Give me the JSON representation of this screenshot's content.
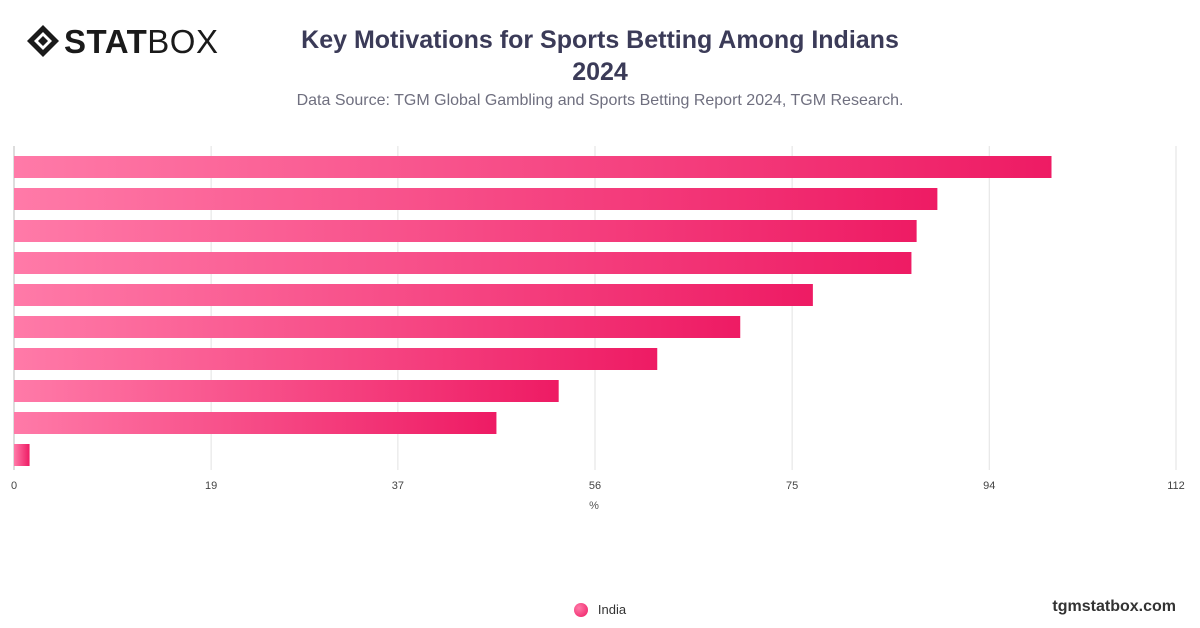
{
  "brand": {
    "logo_bold": "STAT",
    "logo_light": "BOX",
    "website": "tgmstatbox.com"
  },
  "header": {
    "title": "Key Motivations for Sports Betting Among Indians 2024",
    "subtitle": "Data Source: TGM Global Gambling and Sports Betting Report 2024, TGM Research."
  },
  "colors": {
    "bar_start": "#ff7aa8",
    "bar_end": "#ee1b64",
    "grid": "#e2e2e2",
    "text": "#333333"
  },
  "chart_data": {
    "type": "bar",
    "orientation": "horizontal",
    "title": "Key Motivations for Sports Betting Among Indians 2024",
    "subtitle": "Data Source: TGM Global Gambling and Sports Betting Report 2024, TGM Research.",
    "xlabel": "%",
    "ylabel": "",
    "xlim": [
      0,
      112
    ],
    "xticks": [
      0,
      19,
      37,
      56,
      75,
      94,
      112
    ],
    "grid": true,
    "legend": "bottom-center",
    "series": [
      {
        "name": "India",
        "values": [
          100,
          89,
          87,
          86.5,
          77,
          70,
          62,
          52.5,
          46.5,
          1.5
        ]
      }
    ]
  }
}
